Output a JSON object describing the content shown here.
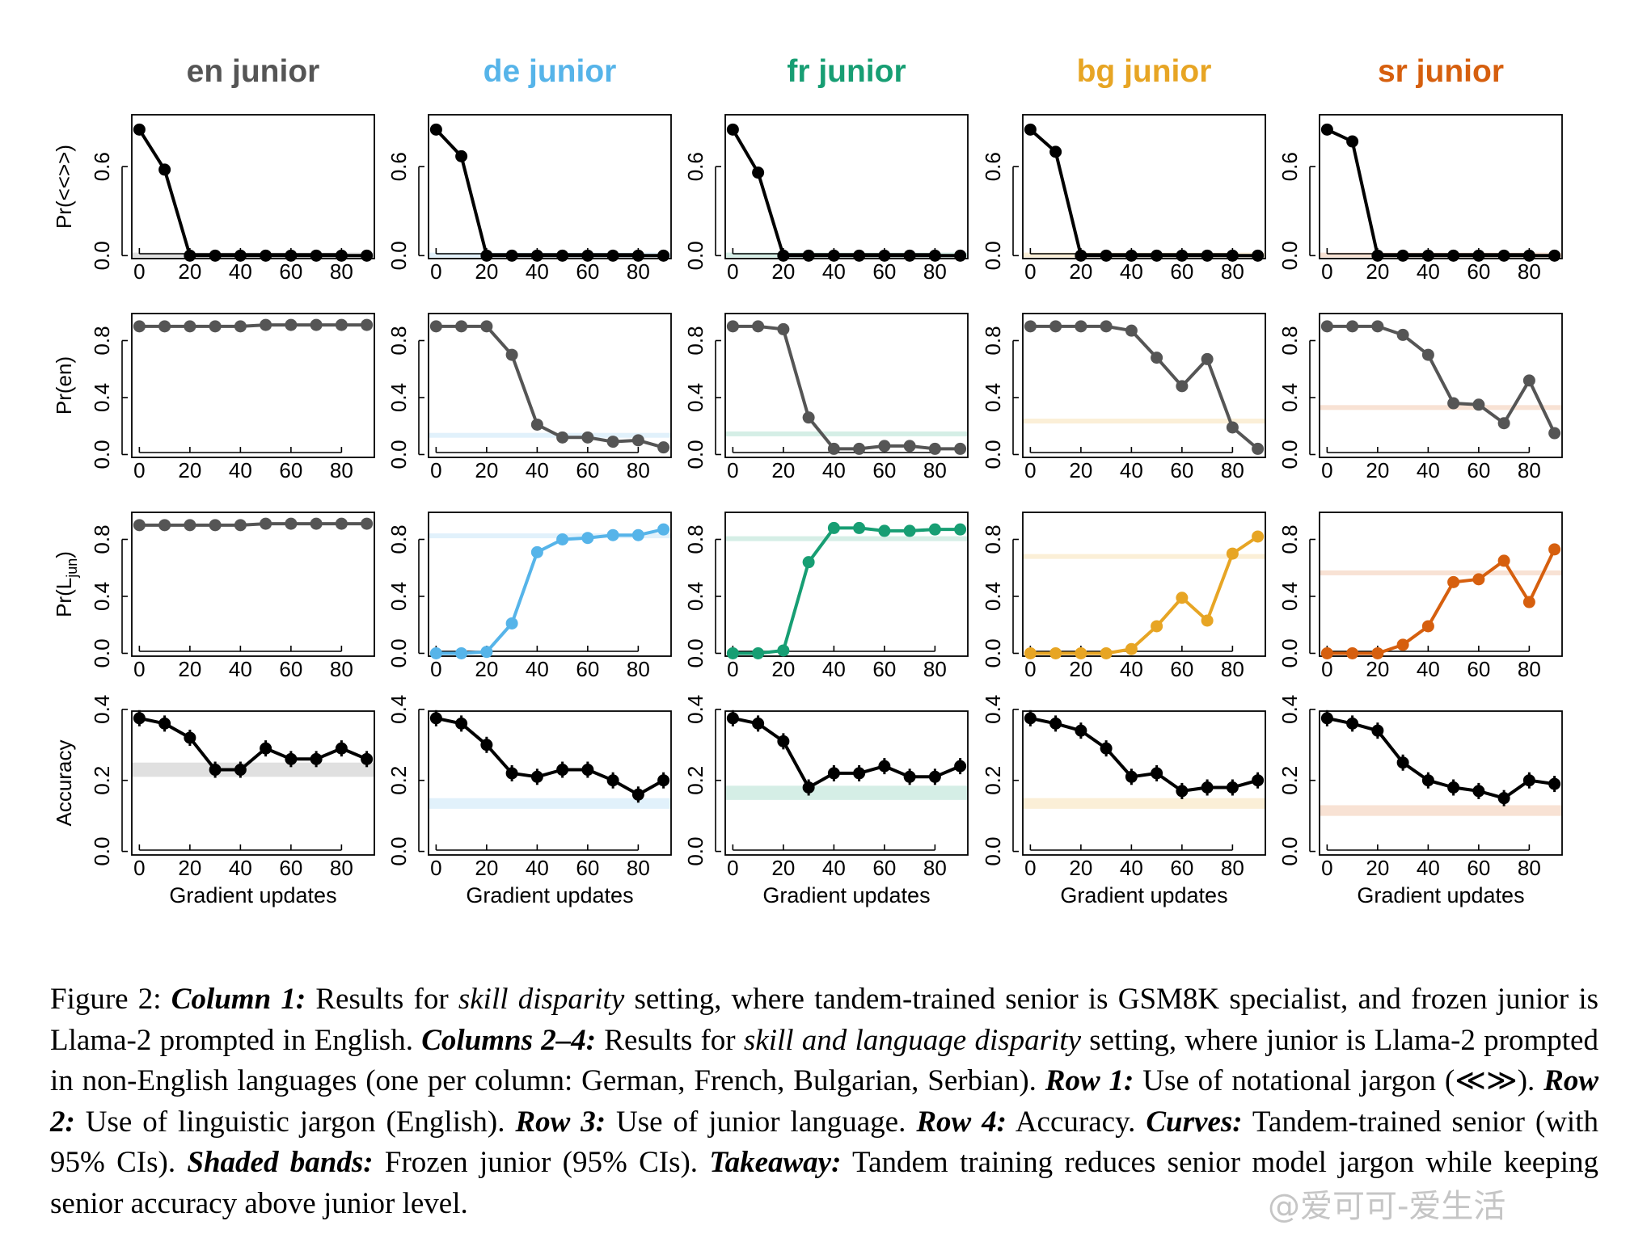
{
  "chart_data": {
    "type": "line",
    "layout": "grid 4 rows x 5 columns",
    "columns": [
      {
        "title": "en junior",
        "color": "#555555"
      },
      {
        "title": "de junior",
        "color": "#56B4E9"
      },
      {
        "title": "fr junior",
        "color": "#179E73"
      },
      {
        "title": "bg junior",
        "color": "#E7A524"
      },
      {
        "title": "sr junior",
        "color": "#D65F0E"
      }
    ],
    "x": [
      0,
      10,
      20,
      30,
      40,
      50,
      60,
      70,
      80,
      90
    ],
    "xticks": [
      0,
      20,
      40,
      60,
      80
    ],
    "xlabel": "Gradient updates",
    "rows": [
      {
        "ylabel": "Pr(<<>>)",
        "ylim": [
          -0.02,
          0.95
        ],
        "yticks": [
          0.0,
          0.6
        ],
        "line_color": "#000000",
        "error_bars": false,
        "series": [
          [
            0.85,
            0.58,
            0.0,
            0.0,
            0.0,
            0.0,
            0.0,
            0.0,
            0.0,
            0.0
          ],
          [
            0.85,
            0.67,
            0.0,
            0.0,
            0.0,
            0.0,
            0.0,
            0.0,
            0.0,
            0.0
          ],
          [
            0.85,
            0.56,
            0.0,
            0.0,
            0.0,
            0.0,
            0.0,
            0.0,
            0.0,
            0.0
          ],
          [
            0.85,
            0.7,
            0.0,
            0.0,
            0.0,
            0.0,
            0.0,
            0.0,
            0.0,
            0.0
          ],
          [
            0.85,
            0.77,
            0.0,
            0.0,
            0.0,
            0.0,
            0.0,
            0.0,
            0.0,
            0.0
          ]
        ],
        "bands": [
          [
            0.0,
            0.004
          ],
          [
            0.0,
            0.004
          ],
          [
            0.0,
            0.004
          ],
          [
            0.0,
            0.004
          ],
          [
            0.0,
            0.004
          ]
        ]
      },
      {
        "ylabel": "Pr(en)",
        "ylim": [
          -0.02,
          0.99
        ],
        "yticks": [
          0.0,
          0.4,
          0.8
        ],
        "line_color": "#555555",
        "error_bars": false,
        "series": [
          [
            0.9,
            0.9,
            0.9,
            0.9,
            0.9,
            0.91,
            0.91,
            0.91,
            0.91,
            0.91
          ],
          [
            0.9,
            0.9,
            0.9,
            0.7,
            0.21,
            0.12,
            0.12,
            0.09,
            0.1,
            0.05
          ],
          [
            0.9,
            0.9,
            0.88,
            0.26,
            0.04,
            0.04,
            0.06,
            0.06,
            0.04,
            0.04
          ],
          [
            0.9,
            0.9,
            0.9,
            0.9,
            0.87,
            0.68,
            0.48,
            0.67,
            0.19,
            0.04
          ],
          [
            0.9,
            0.9,
            0.9,
            0.84,
            0.7,
            0.36,
            0.35,
            0.22,
            0.52,
            0.15
          ]
        ],
        "bands": [
          null,
          [
            0.11,
            0.135
          ],
          [
            0.12,
            0.145
          ],
          [
            0.21,
            0.235
          ],
          [
            0.305,
            0.33
          ]
        ]
      },
      {
        "ylabel": "Pr(L_jun)",
        "ylim": [
          -0.02,
          0.99
        ],
        "yticks": [
          0.0,
          0.4,
          0.8
        ],
        "line_color": null,
        "error_bars": false,
        "series": [
          [
            0.9,
            0.9,
            0.9,
            0.9,
            0.9,
            0.91,
            0.91,
            0.91,
            0.91,
            0.91
          ],
          [
            0.0,
            0.0,
            0.01,
            0.21,
            0.71,
            0.8,
            0.81,
            0.83,
            0.83,
            0.87
          ],
          [
            0.0,
            0.0,
            0.02,
            0.64,
            0.88,
            0.88,
            0.86,
            0.86,
            0.87,
            0.87
          ],
          [
            0.0,
            0.0,
            0.0,
            0.0,
            0.03,
            0.19,
            0.39,
            0.23,
            0.7,
            0.82
          ],
          [
            0.0,
            0.0,
            0.0,
            0.06,
            0.19,
            0.5,
            0.52,
            0.65,
            0.36,
            0.73
          ]
        ],
        "bands": [
          null,
          [
            0.8,
            0.825
          ],
          [
            0.78,
            0.805
          ],
          [
            0.655,
            0.68
          ],
          [
            0.54,
            0.565
          ]
        ]
      },
      {
        "ylabel": "Accuracy",
        "ylim": [
          -0.01,
          0.395
        ],
        "yticks": [
          0.0,
          0.2,
          0.4
        ],
        "line_color": "#000000",
        "error_bars": true,
        "series": [
          [
            0.375,
            0.36,
            0.32,
            0.23,
            0.23,
            0.29,
            0.26,
            0.26,
            0.29,
            0.26
          ],
          [
            0.375,
            0.36,
            0.3,
            0.22,
            0.21,
            0.23,
            0.23,
            0.2,
            0.16,
            0.2
          ],
          [
            0.375,
            0.36,
            0.31,
            0.18,
            0.22,
            0.22,
            0.24,
            0.21,
            0.21,
            0.24
          ],
          [
            0.375,
            0.36,
            0.34,
            0.29,
            0.21,
            0.22,
            0.17,
            0.18,
            0.18,
            0.2
          ],
          [
            0.375,
            0.36,
            0.34,
            0.25,
            0.2,
            0.18,
            0.17,
            0.15,
            0.2,
            0.19
          ]
        ],
        "bands": [
          [
            0.21,
            0.25
          ],
          [
            0.12,
            0.15
          ],
          [
            0.145,
            0.185
          ],
          [
            0.12,
            0.15
          ],
          [
            0.1,
            0.13
          ]
        ]
      }
    ]
  },
  "caption": {
    "fig": "Figure 2:",
    "col1": "Column 1:",
    "t1": " Results for ",
    "i1": "skill disparity",
    "t2": " setting, where tandem-trained senior is GSM8K specialist, and frozen junior is Llama-2 prompted in English. ",
    "col24": "Columns 2–4:",
    "t3": " Results for ",
    "i2": "skill and language disparity",
    "t4": " setting, where junior is Llama-2 prompted in non-English languages (one per column: German, French, Bulgarian, Serbian). ",
    "row1": "Row 1:",
    "t5": " Use of notational jargon (≪≫). ",
    "row2": "Row 2:",
    "t6": " Use of linguistic jargon (English). ",
    "row3": "Row 3:",
    "t7": " Use of junior language. ",
    "row4": "Row 4:",
    "t8": " Accuracy. ",
    "curves": "Curves:",
    "t9": " Tandem-trained senior (with 95% CIs). ",
    "bands": "Shaded bands:",
    "t10": " Frozen junior (95% CIs). ",
    "takeaway": "Takeaway:",
    "t11": " Tandem training reduces senior model jargon while keeping senior accuracy above junior level."
  },
  "watermark": "@爱可可-爱生活"
}
